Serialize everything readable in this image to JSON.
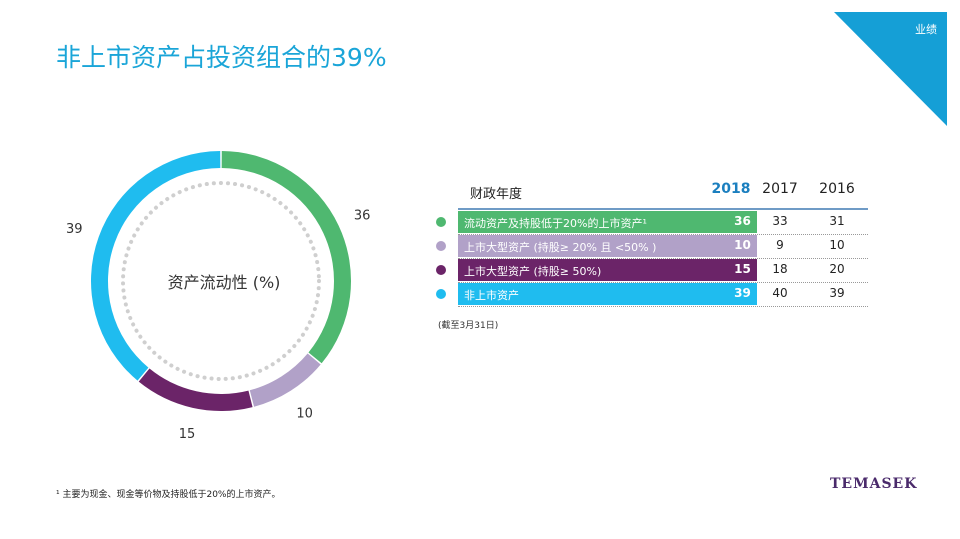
{
  "page": {
    "title": "非上市资产占投资组合的39%",
    "corner_label": "业绩",
    "footnote": "¹ 主要为现金、现金等价物及持股低于20%的上市资产。",
    "logo": "TEMASEK"
  },
  "colors": {
    "title": "#1aa5d8",
    "corner": "#159fd6",
    "green": "#4fb870",
    "lavender": "#b1a1c8",
    "purple": "#6b2468",
    "cyan": "#1fbcef",
    "header_line": "#6f9bc6"
  },
  "chart_data": {
    "type": "pie",
    "center_label": "资产流动性 (%)",
    "categories": [
      "流动资产及持股低于20%的上市资产¹",
      "上市大型资产 (持股≥ 20% 且 <50% )",
      "上市大型资产 (持股≥ 50%)",
      "非上市资产"
    ],
    "values": [
      36,
      10,
      15,
      39
    ],
    "data_labels": [
      "36",
      "10",
      "15",
      "39"
    ],
    "colors": [
      "#4fb870",
      "#b1a1c8",
      "#6b2468",
      "#1fbcef"
    ]
  },
  "table": {
    "header": "财政年度",
    "years": [
      "2018",
      "2017",
      "2016"
    ],
    "rows": [
      {
        "label": "流动资产及持股低于20%的上市资产¹",
        "v2018": "36",
        "v2017": "33",
        "v2016": "31",
        "color": "#4fb870"
      },
      {
        "label": "上市大型资产 (持股≥ 20% 且 <50% )",
        "v2018": "10",
        "v2017": "9",
        "v2016": "10",
        "color": "#b1a1c8"
      },
      {
        "label": "上市大型资产 (持股≥ 50%)",
        "v2018": "15",
        "v2017": "18",
        "v2016": "20",
        "color": "#6b2468"
      },
      {
        "label": "非上市资产",
        "v2018": "39",
        "v2017": "40",
        "v2016": "39",
        "color": "#1fbcef"
      }
    ],
    "note": "(截至3月31日)"
  }
}
